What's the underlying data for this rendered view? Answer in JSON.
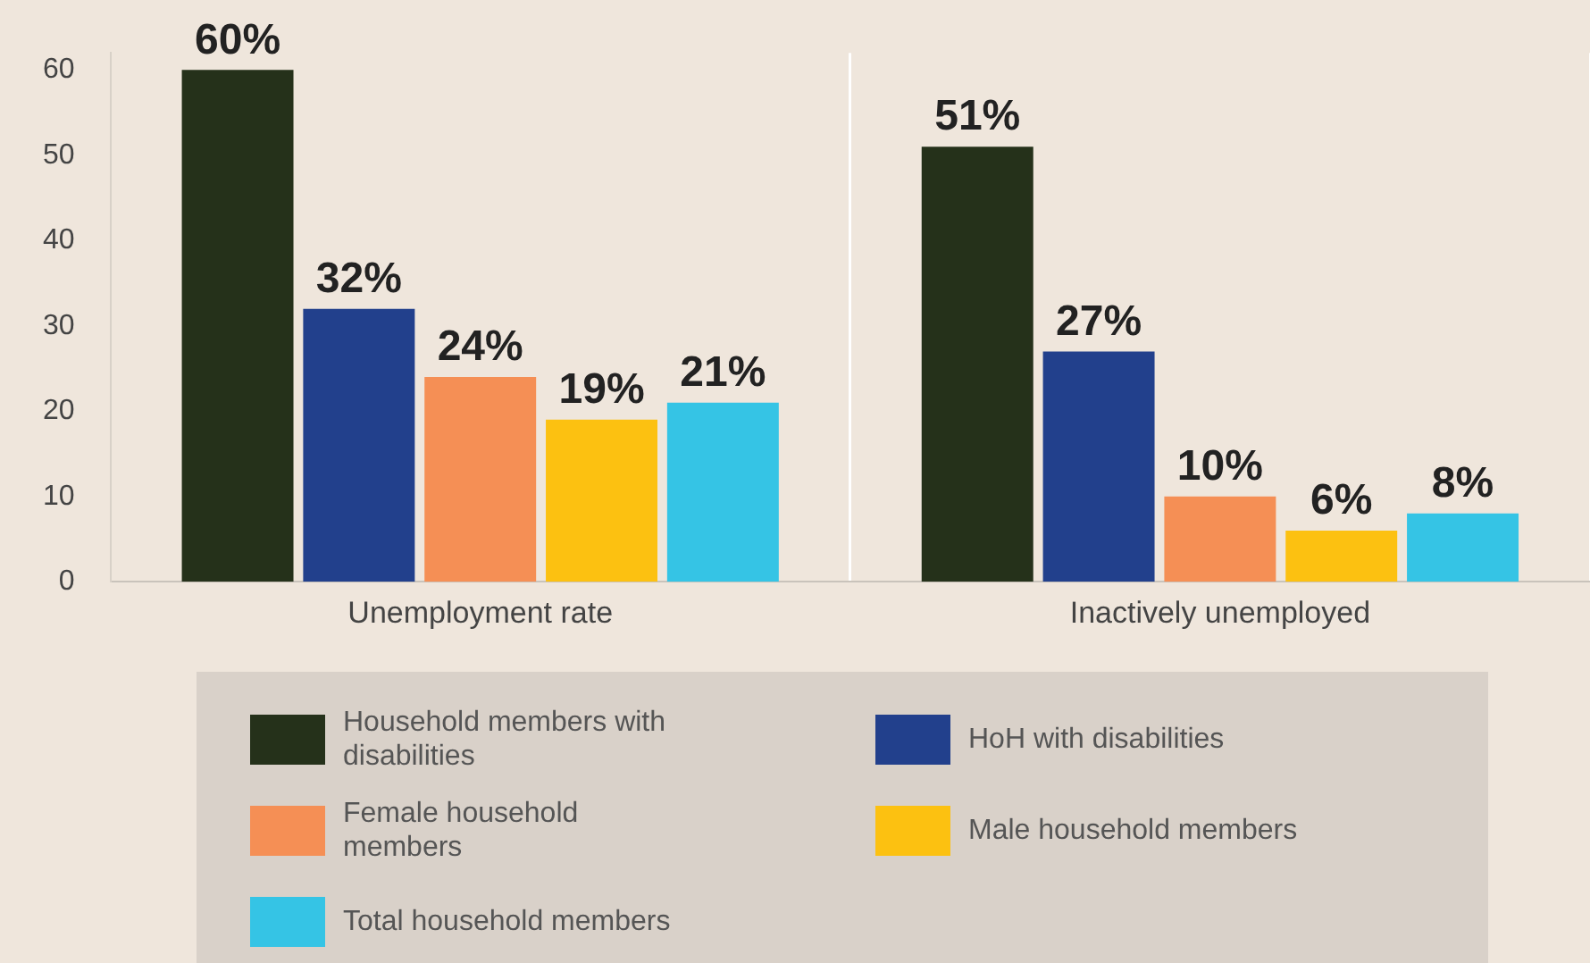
{
  "chart_data": {
    "type": "bar",
    "categories": [
      "Unemployment rate",
      "Inactively unemployed"
    ],
    "series": [
      {
        "name": "Household members with disabilities",
        "color": "#25311a",
        "values": [
          60,
          51
        ],
        "value_labels": [
          "60%",
          "51%"
        ]
      },
      {
        "name": "HoH with disabilities",
        "color": "#22408c",
        "values": [
          32,
          27
        ],
        "value_labels": [
          "32%",
          "27%"
        ]
      },
      {
        "name": "Female household members",
        "color": "#f58f55",
        "values": [
          24,
          10
        ],
        "value_labels": [
          "24%",
          "10%"
        ]
      },
      {
        "name": "Male household members",
        "color": "#fcc111",
        "values": [
          19,
          6
        ],
        "value_labels": [
          "19%",
          "6%"
        ]
      },
      {
        "name": "Total household members",
        "color": "#35c4e5",
        "values": [
          21,
          8
        ],
        "value_labels": [
          "21%",
          "8%"
        ]
      }
    ],
    "ylim": [
      0,
      62
    ],
    "yticks": [
      0,
      10,
      20,
      30,
      40,
      50,
      60
    ],
    "grid": "x",
    "legend": "bottom"
  }
}
